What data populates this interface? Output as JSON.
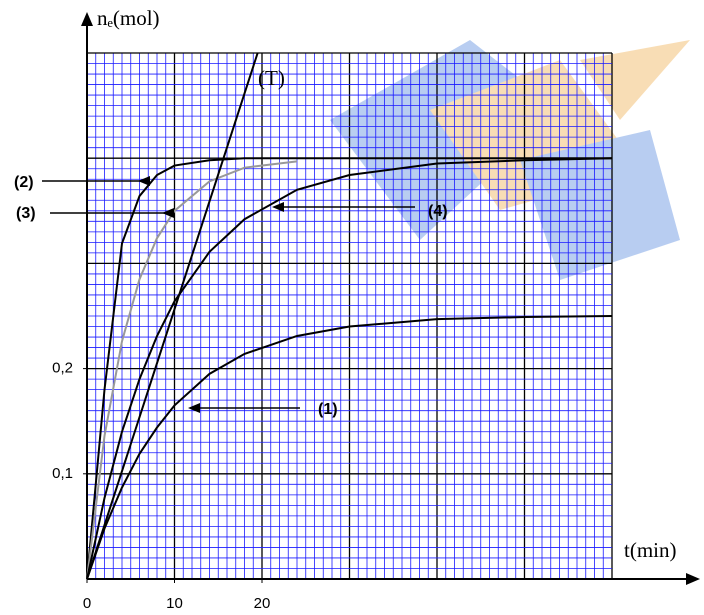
{
  "chart_data": {
    "type": "line",
    "x_label": "t(min)",
    "y_label": "nₑ(mol)",
    "xlim": [
      0,
      60
    ],
    "ylim": [
      0,
      0.5
    ],
    "xticks": [
      0,
      10,
      20
    ],
    "yticks": [
      {
        "value": 0.1,
        "label": "0,1"
      },
      {
        "value": 0.2,
        "label": "0,2"
      }
    ],
    "grid": true,
    "grid_color": "#1a1aff",
    "xmajor": 10,
    "ymajor": 0.1,
    "xminor": 1,
    "yminor": 0.01,
    "series": [
      {
        "name": "(1)",
        "color": "#000000",
        "x": [
          0,
          2,
          4,
          6,
          8,
          10,
          14,
          18,
          24,
          30,
          40,
          50,
          60
        ],
        "values": [
          0,
          0.048,
          0.087,
          0.119,
          0.144,
          0.165,
          0.195,
          0.214,
          0.231,
          0.24,
          0.247,
          0.249,
          0.25
        ]
      },
      {
        "name": "(2)",
        "color": "#000000",
        "x": [
          0,
          2,
          4,
          6,
          8,
          10,
          14,
          18,
          24,
          30,
          40,
          50,
          60
        ],
        "values": [
          0,
          0.18,
          0.319,
          0.364,
          0.384,
          0.393,
          0.398,
          0.4,
          0.4,
          0.4,
          0.4,
          0.4,
          0.4
        ]
      },
      {
        "name": "(3)",
        "color": "#999999",
        "x": [
          0,
          2,
          4,
          6,
          8,
          10,
          14,
          18,
          24,
          30,
          40,
          50,
          60
        ],
        "values": [
          0,
          0.136,
          0.226,
          0.285,
          0.324,
          0.35,
          0.378,
          0.391,
          0.397,
          null,
          null,
          null,
          null
        ]
      },
      {
        "name": "(4)",
        "color": "#000000",
        "x": [
          0,
          2,
          4,
          6,
          8,
          10,
          14,
          18,
          24,
          30,
          40,
          50,
          60
        ],
        "values": [
          0,
          0.077,
          0.14,
          0.19,
          0.231,
          0.264,
          0.311,
          0.342,
          0.37,
          0.384,
          0.395,
          0.398,
          0.4
        ]
      },
      {
        "name": "(T)",
        "color": "#000000",
        "x": [
          0,
          19.5
        ],
        "values": [
          0,
          0.5
        ]
      }
    ]
  }
}
